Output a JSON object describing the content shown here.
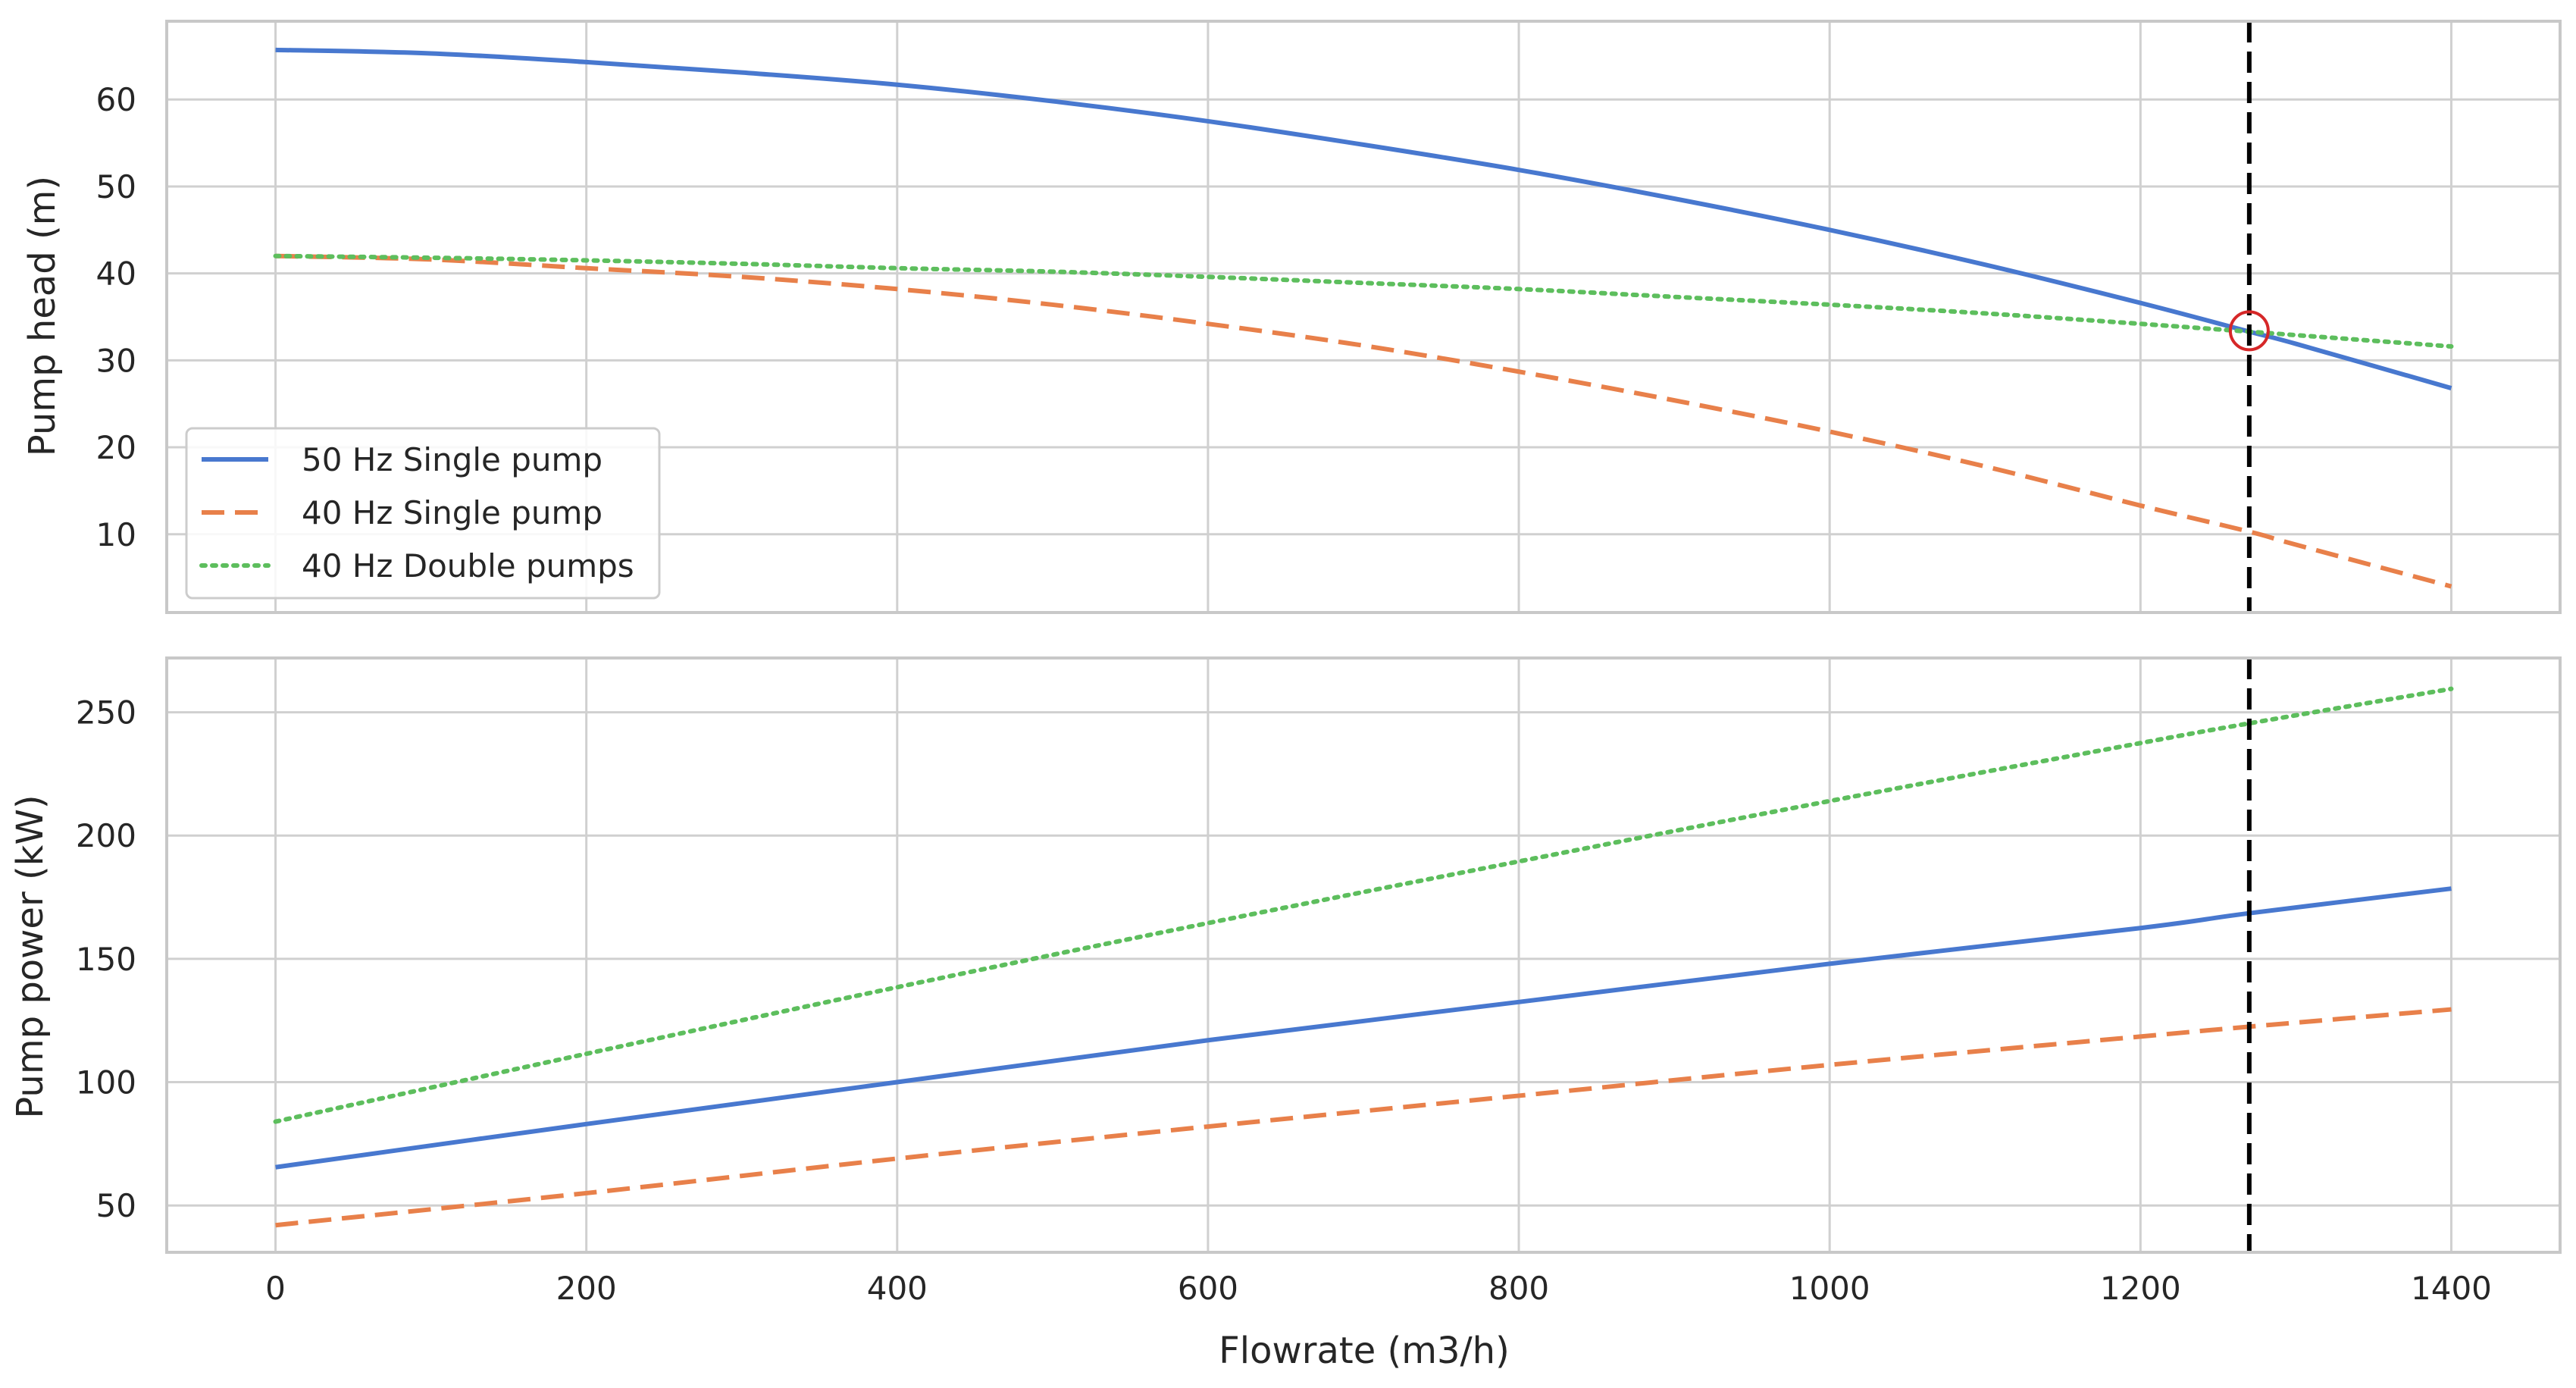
{
  "chart_data": [
    {
      "type": "line",
      "panel": "top",
      "title": "",
      "xlabel": "",
      "ylabel": "Pump head (m)",
      "xlim": [
        -70,
        1470
      ],
      "ylim": [
        1,
        69
      ],
      "xticks": [
        0,
        200,
        400,
        600,
        800,
        1000,
        1200,
        1400
      ],
      "yticks": [
        10,
        20,
        30,
        40,
        50,
        60
      ],
      "show_xtick_labels": false,
      "grid": true,
      "legend": "lower-left",
      "x": [
        0,
        100,
        200,
        300,
        400,
        500,
        600,
        700,
        800,
        900,
        1000,
        1100,
        1200,
        1270,
        1300,
        1400
      ],
      "series": [
        {
          "name": "50 Hz Single  pump",
          "style": "solid",
          "color": "#4878CF",
          "values": [
            65.7,
            65.3,
            64.3,
            63.1,
            61.7,
            59.8,
            57.5,
            54.8,
            51.9,
            48.6,
            45.0,
            41.0,
            36.6,
            33.3,
            31.9,
            26.8
          ]
        },
        {
          "name": "40 Hz Single  pump",
          "style": "dashed",
          "color": "#E8804A",
          "values": [
            42.0,
            41.6,
            40.6,
            39.6,
            38.2,
            36.4,
            34.2,
            31.7,
            28.7,
            25.4,
            21.8,
            17.8,
            13.3,
            10.3,
            8.8,
            4.0
          ]
        },
        {
          "name": "40 Hz Double pumps",
          "style": "dotted",
          "color": "#5DBE5D",
          "values": [
            42.0,
            41.8,
            41.5,
            41.1,
            40.6,
            40.2,
            39.6,
            38.9,
            38.2,
            37.3,
            36.4,
            35.4,
            34.2,
            33.3,
            32.9,
            31.6
          ]
        }
      ],
      "vline": {
        "x": 1270,
        "style": "dashed",
        "color": "#000000"
      },
      "marker": {
        "x": 1270,
        "y": 33.4,
        "shape": "circle",
        "color": "#D62728"
      }
    },
    {
      "type": "line",
      "panel": "bottom",
      "title": "",
      "xlabel": "Flowrate (m3/h)",
      "ylabel": "Pump power (kW)",
      "xlim": [
        -70,
        1470
      ],
      "ylim": [
        31,
        272
      ],
      "xticks": [
        0,
        200,
        400,
        600,
        800,
        1000,
        1200,
        1400
      ],
      "yticks": [
        50,
        100,
        150,
        200,
        250
      ],
      "show_xtick_labels": true,
      "grid": true,
      "x": [
        0,
        200,
        400,
        600,
        800,
        1000,
        1200,
        1270,
        1400
      ],
      "series": [
        {
          "name": "50 Hz Single  pump",
          "style": "solid",
          "color": "#4878CF",
          "values": [
            65.5,
            83.0,
            100.0,
            117.0,
            132.5,
            148.0,
            162.5,
            168.5,
            178.5
          ]
        },
        {
          "name": "40 Hz Single  pump",
          "style": "dashed",
          "color": "#E8804A",
          "values": [
            42.0,
            55.0,
            69.0,
            82.0,
            94.5,
            107.0,
            118.5,
            122.5,
            129.5
          ]
        },
        {
          "name": "40 Hz Double pumps",
          "style": "dotted",
          "color": "#5DBE5D",
          "values": [
            84.0,
            111.5,
            138.5,
            164.5,
            189.5,
            214.0,
            237.5,
            245.5,
            259.5
          ]
        }
      ],
      "vline": {
        "x": 1270,
        "style": "dashed",
        "color": "#000000"
      }
    }
  ]
}
